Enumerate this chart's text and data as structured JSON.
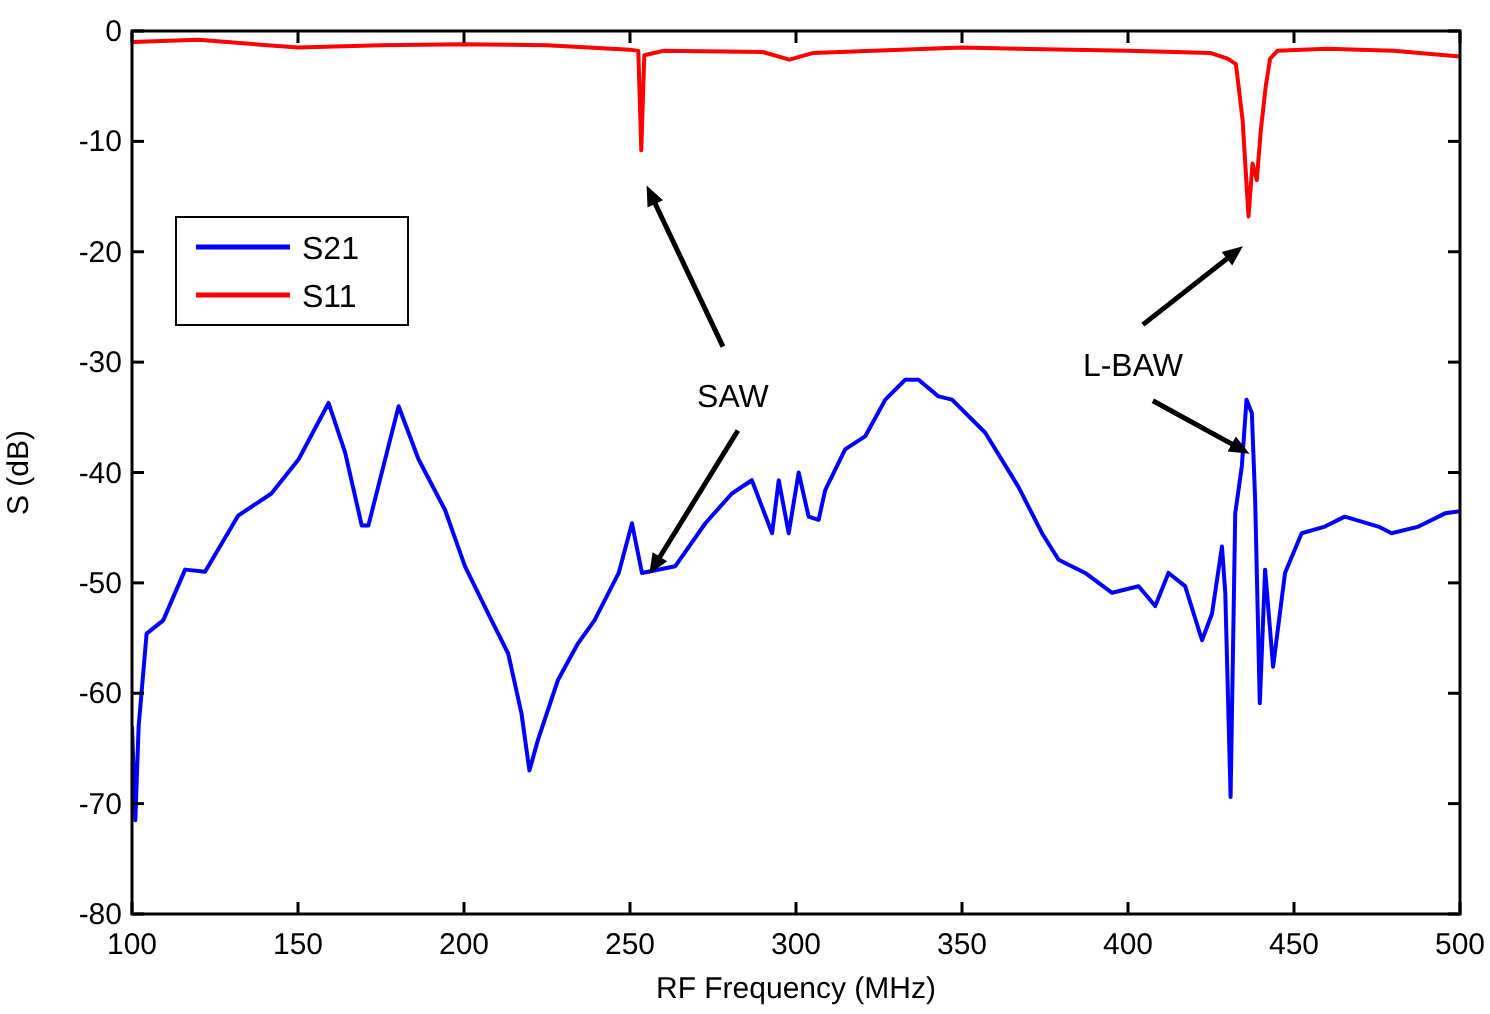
{
  "chart_data": {
    "type": "line",
    "xlabel": "RF Frequency (MHz)",
    "ylabel": "S (dB)",
    "xlim": [
      100,
      500
    ],
    "xticks": [
      100,
      150,
      200,
      250,
      300,
      350,
      400,
      450,
      500
    ],
    "ylim": [
      -80,
      0
    ],
    "yticks": [
      -80,
      -70,
      -60,
      -50,
      -40,
      -30,
      -20,
      -10,
      0
    ],
    "grid": false,
    "legend": "top left",
    "line_style": "solid",
    "marker": "none",
    "series": [
      {
        "name": "S21",
        "color": "#0000ff",
        "x": [
          100,
          101,
          102,
          104.4,
          109.4,
          116,
          122,
          132,
          142,
          150.2,
          159.2,
          164.2,
          169.2,
          171.2,
          180.3,
          186.3,
          194.3,
          200.3,
          208.3,
          213.3,
          217.3,
          219.7,
          222.3,
          228.3,
          234.3,
          239.3,
          246.6,
          250.6,
          253.6,
          263.6,
          272.7,
          280.7,
          286.7,
          292.8,
          294.8,
          297.8,
          300.8,
          303.8,
          306.8,
          308.8,
          314.8,
          320.9,
          326.9,
          332.9,
          336.9,
          342.9,
          347,
          357,
          367,
          374.1,
          379.1,
          387.1,
          395.2,
          403.2,
          408.2,
          412.2,
          417.2,
          422.3,
          425.3,
          428.3,
          429.3,
          430.9,
          432.3,
          434.3,
          435.7,
          437.3,
          438.3,
          439.7,
          441.3,
          443.7,
          447.3,
          452.3,
          459.3,
          465.3,
          475.4,
          479.4,
          487.5,
          495.5,
          500
        ],
        "values": [
          -63,
          -71.5,
          -63,
          -54.6,
          -53.4,
          -48.8,
          -49,
          -43.9,
          -41.9,
          -38.8,
          -33.7,
          -38.2,
          -44.8,
          -44.8,
          -34,
          -38.8,
          -43.4,
          -48.5,
          -53.4,
          -56.4,
          -61.8,
          -67,
          -64.2,
          -58.8,
          -55.5,
          -53.4,
          -49.1,
          -44.6,
          -49.1,
          -48.5,
          -44.6,
          -41.9,
          -40.7,
          -45.5,
          -40.7,
          -45.5,
          -40,
          -44,
          -44.3,
          -41.6,
          -37.9,
          -36.7,
          -33.4,
          -31.6,
          -31.6,
          -33.1,
          -33.4,
          -36.4,
          -41.3,
          -45.5,
          -47.9,
          -49.1,
          -50.9,
          -50.3,
          -52.1,
          -49.1,
          -50.3,
          -55.2,
          -52.8,
          -46.7,
          -50.9,
          -69.4,
          -43.7,
          -39.4,
          -33.4,
          -34.6,
          -42.5,
          -60.9,
          -48.8,
          -57.6,
          -49.1,
          -45.5,
          -44.9,
          -44,
          -44.9,
          -45.5,
          -44.9,
          -43.7,
          -43.5
        ]
      },
      {
        "name": "S11",
        "color": "#ff0000",
        "x": [
          100,
          120,
          150,
          175,
          200,
          225,
          250,
          252.5,
          253.4,
          254.3,
          260,
          290,
          298,
          305,
          350,
          400,
          425,
          430,
          432.5,
          434.5,
          436.3,
          437.5,
          438.8,
          440,
          441.5,
          442.8,
          445,
          460,
          480,
          500
        ],
        "values": [
          -1,
          -0.8,
          -1.5,
          -1.3,
          -1.2,
          -1.3,
          -1.7,
          -1.8,
          -10.8,
          -2.2,
          -1.8,
          -1.9,
          -2.6,
          -2,
          -1.5,
          -1.8,
          -2,
          -2.5,
          -3,
          -8,
          -16.8,
          -12,
          -13.5,
          -9,
          -5,
          -2.5,
          -1.8,
          -1.6,
          -1.8,
          -2.3
        ]
      }
    ],
    "annotations": [
      {
        "text": "SAW",
        "x": 255.8,
        "y": -49.2
      },
      {
        "text": "L-BAW",
        "x": 436.6,
        "y": -38.3
      }
    ]
  }
}
